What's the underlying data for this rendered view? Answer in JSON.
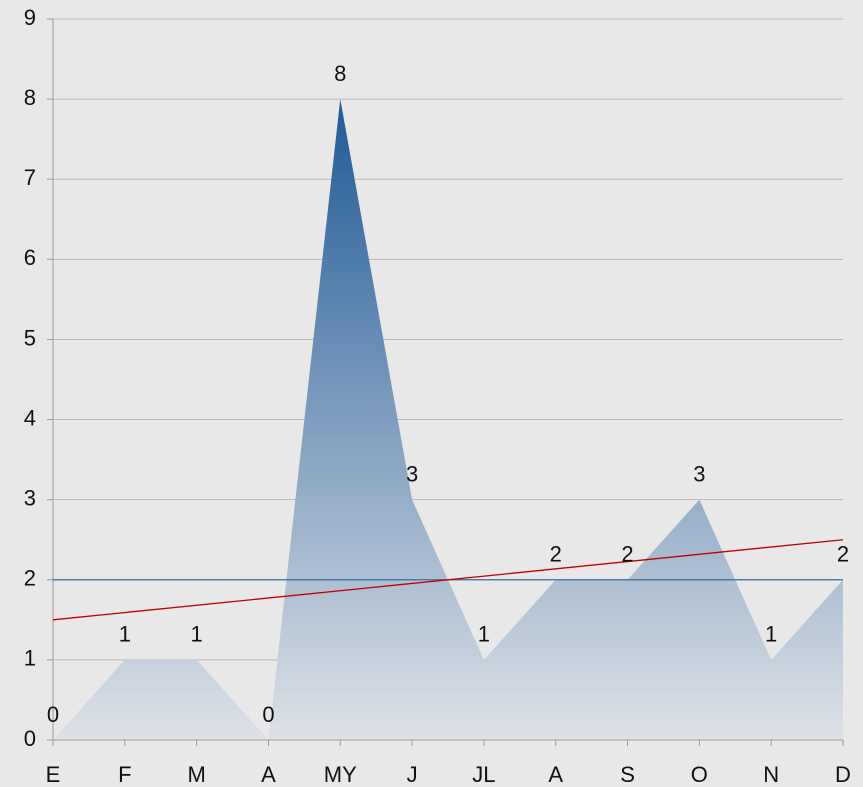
{
  "chart_data": {
    "type": "area",
    "categories": [
      "E",
      "F",
      "M",
      "A",
      "MY",
      "J",
      "JL",
      "A",
      "S",
      "O",
      "N",
      "D"
    ],
    "values": [
      0,
      1,
      1,
      0,
      8,
      3,
      1,
      2,
      2,
      3,
      1,
      2
    ],
    "color": "#1f5a96",
    "ylim": [
      0,
      9
    ],
    "yticks": [
      0,
      1,
      2,
      3,
      4,
      5,
      6,
      7,
      8,
      9
    ],
    "grid": true,
    "reference_line": {
      "value": 2,
      "color": "#3a6ea5"
    },
    "trend_line": {
      "start": 1.5,
      "end": 2.5,
      "color": "#c00000"
    }
  }
}
